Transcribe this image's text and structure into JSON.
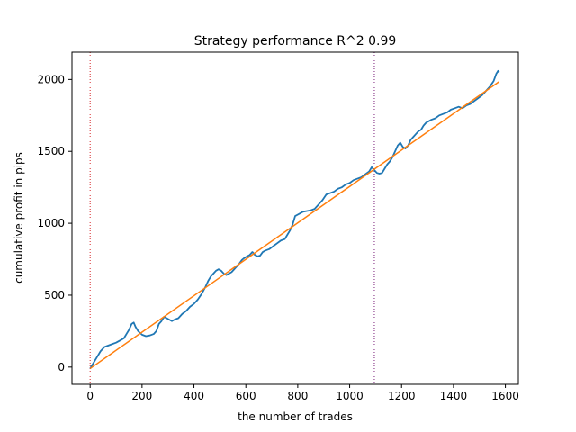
{
  "chart_data": {
    "type": "line",
    "title": "Strategy performance R^2 0.99",
    "xlabel": "the number of trades",
    "ylabel": "cumulative profit in pips",
    "xlim": [
      -70,
      1650
    ],
    "ylim": [
      -120,
      2190
    ],
    "xticks": [
      0,
      200,
      400,
      600,
      800,
      1000,
      1200,
      1400,
      1600
    ],
    "yticks": [
      0,
      500,
      1000,
      1500,
      2000
    ],
    "grid": false,
    "legend": "none",
    "vlines": [
      {
        "x": 0,
        "color": "#d62728",
        "style": "dotted"
      },
      {
        "x": 1095,
        "color": "#7b1f7b",
        "style": "dotted"
      }
    ],
    "series": [
      {
        "color": "#1f77b4",
        "points": [
          [
            0,
            -10
          ],
          [
            10,
            20
          ],
          [
            20,
            50
          ],
          [
            30,
            80
          ],
          [
            40,
            110
          ],
          [
            55,
            140
          ],
          [
            70,
            150
          ],
          [
            85,
            160
          ],
          [
            100,
            170
          ],
          [
            115,
            185
          ],
          [
            130,
            200
          ],
          [
            140,
            230
          ],
          [
            150,
            260
          ],
          [
            160,
            300
          ],
          [
            168,
            310
          ],
          [
            175,
            280
          ],
          [
            185,
            250
          ],
          [
            200,
            225
          ],
          [
            215,
            215
          ],
          [
            230,
            220
          ],
          [
            245,
            230
          ],
          [
            255,
            250
          ],
          [
            265,
            300
          ],
          [
            275,
            320
          ],
          [
            285,
            350
          ],
          [
            295,
            340
          ],
          [
            305,
            330
          ],
          [
            315,
            320
          ],
          [
            325,
            330
          ],
          [
            340,
            340
          ],
          [
            355,
            370
          ],
          [
            370,
            390
          ],
          [
            385,
            420
          ],
          [
            400,
            440
          ],
          [
            415,
            470
          ],
          [
            430,
            510
          ],
          [
            445,
            560
          ],
          [
            455,
            600
          ],
          [
            465,
            630
          ],
          [
            475,
            650
          ],
          [
            485,
            670
          ],
          [
            495,
            680
          ],
          [
            505,
            670
          ],
          [
            515,
            650
          ],
          [
            525,
            640
          ],
          [
            535,
            650
          ],
          [
            545,
            660
          ],
          [
            555,
            680
          ],
          [
            565,
            700
          ],
          [
            575,
            720
          ],
          [
            585,
            745
          ],
          [
            595,
            760
          ],
          [
            605,
            770
          ],
          [
            615,
            780
          ],
          [
            625,
            800
          ],
          [
            635,
            780
          ],
          [
            645,
            770
          ],
          [
            655,
            775
          ],
          [
            665,
            800
          ],
          [
            675,
            810
          ],
          [
            690,
            820
          ],
          [
            705,
            840
          ],
          [
            720,
            860
          ],
          [
            735,
            880
          ],
          [
            750,
            890
          ],
          [
            760,
            920
          ],
          [
            770,
            950
          ],
          [
            780,
            990
          ],
          [
            790,
            1050
          ],
          [
            800,
            1060
          ],
          [
            810,
            1070
          ],
          [
            820,
            1080
          ],
          [
            835,
            1085
          ],
          [
            850,
            1090
          ],
          [
            865,
            1100
          ],
          [
            880,
            1130
          ],
          [
            895,
            1160
          ],
          [
            910,
            1200
          ],
          [
            925,
            1210
          ],
          [
            940,
            1220
          ],
          [
            955,
            1240
          ],
          [
            970,
            1250
          ],
          [
            985,
            1270
          ],
          [
            1000,
            1280
          ],
          [
            1015,
            1300
          ],
          [
            1030,
            1310
          ],
          [
            1045,
            1320
          ],
          [
            1060,
            1340
          ],
          [
            1075,
            1360
          ],
          [
            1085,
            1390
          ],
          [
            1095,
            1370
          ],
          [
            1105,
            1350
          ],
          [
            1115,
            1345
          ],
          [
            1125,
            1350
          ],
          [
            1135,
            1380
          ],
          [
            1145,
            1410
          ],
          [
            1155,
            1430
          ],
          [
            1165,
            1460
          ],
          [
            1175,
            1500
          ],
          [
            1185,
            1540
          ],
          [
            1195,
            1560
          ],
          [
            1205,
            1530
          ],
          [
            1215,
            1520
          ],
          [
            1225,
            1540
          ],
          [
            1235,
            1580
          ],
          [
            1245,
            1600
          ],
          [
            1255,
            1620
          ],
          [
            1265,
            1640
          ],
          [
            1275,
            1650
          ],
          [
            1285,
            1680
          ],
          [
            1295,
            1700
          ],
          [
            1305,
            1710
          ],
          [
            1315,
            1720
          ],
          [
            1330,
            1730
          ],
          [
            1345,
            1750
          ],
          [
            1360,
            1760
          ],
          [
            1375,
            1770
          ],
          [
            1390,
            1790
          ],
          [
            1405,
            1800
          ],
          [
            1420,
            1810
          ],
          [
            1435,
            1800
          ],
          [
            1450,
            1820
          ],
          [
            1465,
            1830
          ],
          [
            1480,
            1850
          ],
          [
            1495,
            1870
          ],
          [
            1510,
            1890
          ],
          [
            1525,
            1920
          ],
          [
            1540,
            1950
          ],
          [
            1555,
            1990
          ],
          [
            1565,
            2040
          ],
          [
            1572,
            2060
          ],
          [
            1576,
            2050
          ]
        ]
      },
      {
        "color": "#ff7f0e",
        "points": [
          [
            0,
            -10
          ],
          [
            1576,
            1985
          ]
        ]
      }
    ]
  }
}
